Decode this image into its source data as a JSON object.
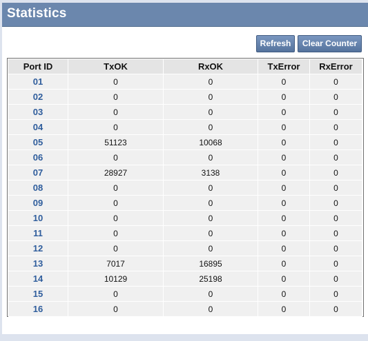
{
  "page": {
    "title": "Statistics"
  },
  "toolbar": {
    "refresh_label": "Refresh",
    "clear_label": "Clear Counter"
  },
  "table": {
    "headers": [
      "Port ID",
      "TxOK",
      "RxOK",
      "TxError",
      "RxError"
    ],
    "rows": [
      [
        "01",
        "0",
        "0",
        "0",
        "0"
      ],
      [
        "02",
        "0",
        "0",
        "0",
        "0"
      ],
      [
        "03",
        "0",
        "0",
        "0",
        "0"
      ],
      [
        "04",
        "0",
        "0",
        "0",
        "0"
      ],
      [
        "05",
        "51123",
        "10068",
        "0",
        "0"
      ],
      [
        "06",
        "0",
        "0",
        "0",
        "0"
      ],
      [
        "07",
        "28927",
        "3138",
        "0",
        "0"
      ],
      [
        "08",
        "0",
        "0",
        "0",
        "0"
      ],
      [
        "09",
        "0",
        "0",
        "0",
        "0"
      ],
      [
        "10",
        "0",
        "0",
        "0",
        "0"
      ],
      [
        "11",
        "0",
        "0",
        "0",
        "0"
      ],
      [
        "12",
        "0",
        "0",
        "0",
        "0"
      ],
      [
        "13",
        "7017",
        "16895",
        "0",
        "0"
      ],
      [
        "14",
        "10129",
        "25198",
        "0",
        "0"
      ],
      [
        "15",
        "0",
        "0",
        "0",
        "0"
      ],
      [
        "16",
        "0",
        "0",
        "0",
        "0"
      ]
    ]
  },
  "colors": {
    "header_bar": "#6b87ad",
    "port_link": "#2f5d9c",
    "button": "#55739d"
  }
}
